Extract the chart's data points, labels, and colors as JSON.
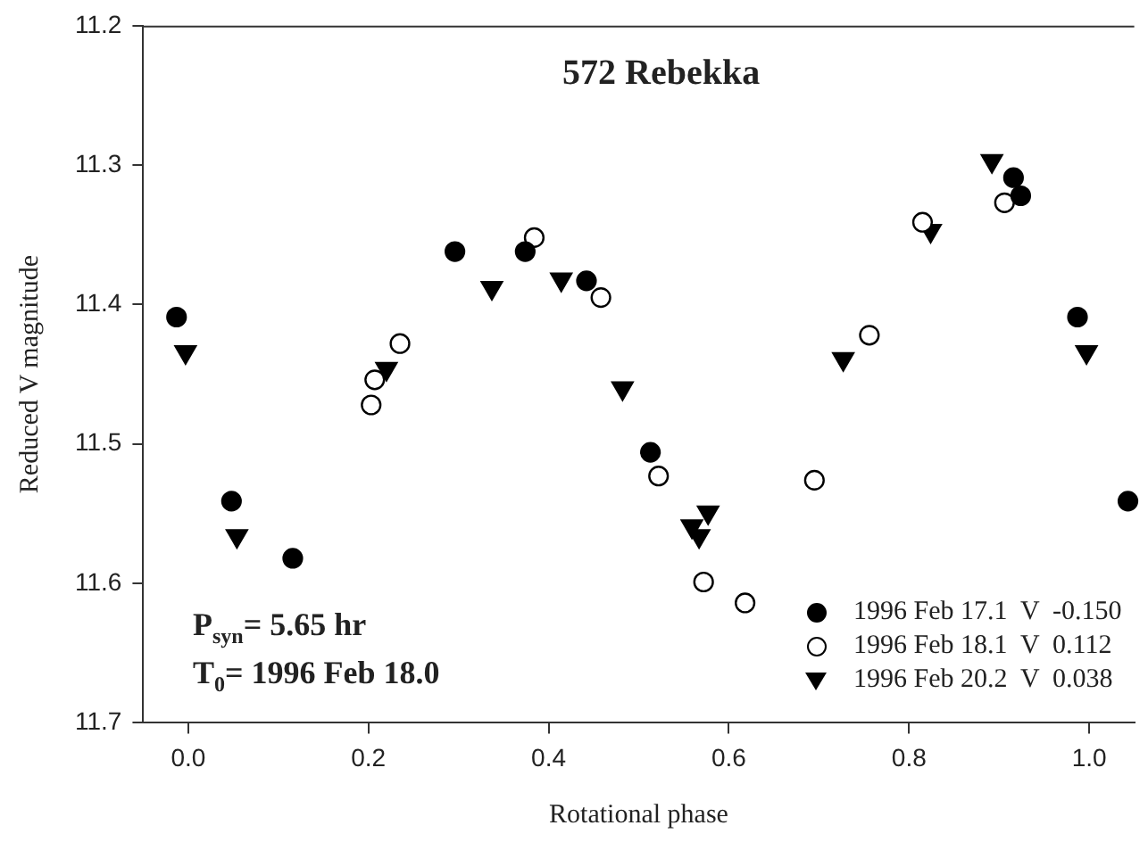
{
  "chart_data": {
    "type": "scatter",
    "title": "572 Rebekka",
    "xlabel": "Rotational phase",
    "ylabel": "Reduced V magnitude",
    "annotations": [
      "P$_{syn}$= 5.65 hr",
      "T$_{0}$= 1996 Feb 18.0"
    ],
    "xlim": [
      -0.05,
      1.05
    ],
    "xticks": [
      {
        "value": 0,
        "label": "0.0"
      },
      0.2,
      0.4,
      0.6,
      0.8,
      {
        "value": 1,
        "label": "1.0"
      }
    ],
    "ylim": [
      11.7,
      11.2
    ],
    "yticks": [
      11.2,
      11.3,
      11.4,
      11.5,
      11.6,
      11.7
    ],
    "grid": false,
    "legend": "bottom right",
    "series": [
      {
        "name": "1996 Feb 17.1  V  -0.150",
        "color": "#000000",
        "marker": "circle",
        "x": [
          -0.013,
          0.048,
          0.116,
          0.296,
          0.374,
          0.442,
          0.513,
          0.916,
          0.924,
          0.987,
          1.043
        ],
        "values": [
          11.409,
          11.541,
          11.582,
          11.362,
          11.362,
          11.383,
          11.506,
          11.309,
          11.322,
          11.409,
          11.541
        ]
      },
      {
        "name": "1996 Feb 18.1  V  0.112",
        "color": "#ffffff",
        "marker": "circle",
        "x": [
          0.203,
          0.207,
          0.235,
          0.384,
          0.458,
          0.522,
          0.572,
          0.618,
          0.695,
          0.756,
          0.815,
          0.906
        ],
        "values": [
          11.472,
          11.454,
          11.428,
          11.352,
          11.395,
          11.523,
          11.599,
          11.614,
          11.526,
          11.422,
          11.341,
          11.327
        ]
      },
      {
        "name": "1996 Feb 20.2  V  0.038",
        "color": "#000000",
        "marker": "triangle",
        "x": [
          -0.003,
          0.054,
          0.22,
          0.337,
          0.414,
          0.482,
          0.559,
          0.567,
          0.577,
          0.727,
          0.824,
          0.892,
          0.997
        ],
        "values": [
          11.434,
          11.566,
          11.446,
          11.388,
          11.382,
          11.46,
          11.559,
          11.566,
          11.549,
          11.439,
          11.347,
          11.297,
          11.434
        ]
      }
    ]
  }
}
